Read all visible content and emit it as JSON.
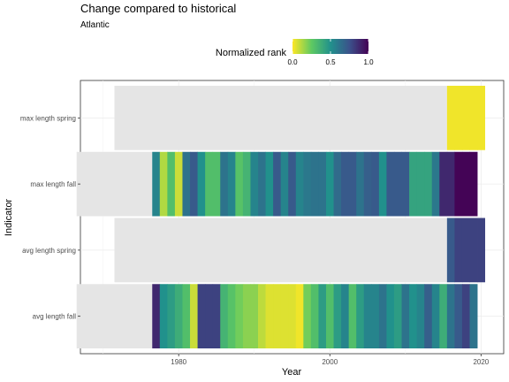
{
  "chart_data": {
    "type": "heatmap",
    "title": "Change compared to historical",
    "subtitle": "Atlantic",
    "xlabel": "Year",
    "ylabel": "Indicator",
    "xlim": [
      1967,
      2023
    ],
    "x_ticks": [
      "1980",
      "2000",
      "2020"
    ],
    "grid": true,
    "legend": {
      "title": "Normalized rank",
      "position": "top",
      "ticks": [
        "0.0",
        "0.5",
        "1.0"
      ],
      "colormap": "viridis-reversed",
      "min": 0,
      "max": 1
    },
    "missing_color": "#e5e5e5",
    "indicators": [
      {
        "name": "max length spring",
        "missing_span": [
          1972,
          2015
        ],
        "values": [
          {
            "year": 2016,
            "rank": 0.02
          },
          {
            "year": 2017,
            "rank": 0.02
          },
          {
            "year": 2018,
            "rank": 0.02
          },
          {
            "year": 2019,
            "rank": 0.02
          },
          {
            "year": 2020,
            "rank": 0.02
          }
        ]
      },
      {
        "name": "max length fall",
        "missing_span": [
          1967,
          1976
        ],
        "values": [
          {
            "year": 1977,
            "rank": 0.55
          },
          {
            "year": 1978,
            "rank": 0.12
          },
          {
            "year": 1979,
            "rank": 0.3
          },
          {
            "year": 1980,
            "rank": 0.08
          },
          {
            "year": 1981,
            "rank": 0.62
          },
          {
            "year": 1982,
            "rank": 0.72
          },
          {
            "year": 1983,
            "rank": 0.5
          },
          {
            "year": 1984,
            "rank": 0.3
          },
          {
            "year": 1985,
            "rank": 0.3
          },
          {
            "year": 1986,
            "rank": 0.62
          },
          {
            "year": 1987,
            "rank": 0.55
          },
          {
            "year": 1988,
            "rank": 0.28
          },
          {
            "year": 1989,
            "rank": 0.35
          },
          {
            "year": 1990,
            "rank": 0.55
          },
          {
            "year": 1991,
            "rank": 0.62
          },
          {
            "year": 1992,
            "rank": 0.5
          },
          {
            "year": 1993,
            "rank": 0.72
          },
          {
            "year": 1994,
            "rank": 0.55
          },
          {
            "year": 1995,
            "rank": 0.72
          },
          {
            "year": 1996,
            "rank": 0.55
          },
          {
            "year": 1997,
            "rank": 0.6
          },
          {
            "year": 1998,
            "rank": 0.62
          },
          {
            "year": 1999,
            "rank": 0.62
          },
          {
            "year": 2000,
            "rank": 0.5
          },
          {
            "year": 2001,
            "rank": 0.65
          },
          {
            "year": 2002,
            "rank": 0.72
          },
          {
            "year": 2003,
            "rank": 0.72
          },
          {
            "year": 2004,
            "rank": 0.62
          },
          {
            "year": 2005,
            "rank": 0.7
          },
          {
            "year": 2006,
            "rank": 0.72
          },
          {
            "year": 2007,
            "rank": 0.5
          },
          {
            "year": 2008,
            "rank": 0.72
          },
          {
            "year": 2009,
            "rank": 0.72
          },
          {
            "year": 2010,
            "rank": 0.72
          },
          {
            "year": 2011,
            "rank": 0.42
          },
          {
            "year": 2012,
            "rank": 0.42
          },
          {
            "year": 2013,
            "rank": 0.42
          },
          {
            "year": 2014,
            "rank": 0.6
          },
          {
            "year": 2015,
            "rank": 0.88
          },
          {
            "year": 2016,
            "rank": 0.88
          },
          {
            "year": 2017,
            "rank": 0.99
          },
          {
            "year": 2018,
            "rank": 0.99
          },
          {
            "year": 2019,
            "rank": 0.99
          }
        ]
      },
      {
        "name": "avg length spring",
        "missing_span": [
          1972,
          2015
        ],
        "values": [
          {
            "year": 2016,
            "rank": 0.72
          },
          {
            "year": 2017,
            "rank": 0.8
          },
          {
            "year": 2018,
            "rank": 0.8
          },
          {
            "year": 2019,
            "rank": 0.8
          },
          {
            "year": 2020,
            "rank": 0.8
          }
        ]
      },
      {
        "name": "avg length fall",
        "missing_span": [
          1967,
          1976
        ],
        "values": [
          {
            "year": 1977,
            "rank": 0.88
          },
          {
            "year": 1978,
            "rank": 0.5
          },
          {
            "year": 1979,
            "rank": 0.45
          },
          {
            "year": 1980,
            "rank": 0.38
          },
          {
            "year": 1981,
            "rank": 0.3
          },
          {
            "year": 1982,
            "rank": 0.08
          },
          {
            "year": 1983,
            "rank": 0.8
          },
          {
            "year": 1984,
            "rank": 0.8
          },
          {
            "year": 1985,
            "rank": 0.8
          },
          {
            "year": 1986,
            "rank": 0.35
          },
          {
            "year": 1987,
            "rank": 0.28
          },
          {
            "year": 1988,
            "rank": 0.22
          },
          {
            "year": 1989,
            "rank": 0.18
          },
          {
            "year": 1990,
            "rank": 0.18
          },
          {
            "year": 1991,
            "rank": 0.1
          },
          {
            "year": 1992,
            "rank": 0.05
          },
          {
            "year": 1993,
            "rank": 0.05
          },
          {
            "year": 1994,
            "rank": 0.05
          },
          {
            "year": 1995,
            "rank": 0.05
          },
          {
            "year": 1996,
            "rank": 0.02
          },
          {
            "year": 1997,
            "rank": 0.22
          },
          {
            "year": 1998,
            "rank": 0.3
          },
          {
            "year": 1999,
            "rank": 0.45
          },
          {
            "year": 2000,
            "rank": 0.3
          },
          {
            "year": 2001,
            "rank": 0.45
          },
          {
            "year": 2002,
            "rank": 0.55
          },
          {
            "year": 2003,
            "rank": 0.3
          },
          {
            "year": 2004,
            "rank": 0.45
          },
          {
            "year": 2005,
            "rank": 0.55
          },
          {
            "year": 2006,
            "rank": 0.55
          },
          {
            "year": 2007,
            "rank": 0.62
          },
          {
            "year": 2008,
            "rank": 0.5
          },
          {
            "year": 2009,
            "rank": 0.45
          },
          {
            "year": 2010,
            "rank": 0.62
          },
          {
            "year": 2011,
            "rank": 0.5
          },
          {
            "year": 2012,
            "rank": 0.55
          },
          {
            "year": 2013,
            "rank": 0.7
          },
          {
            "year": 2014,
            "rank": 0.55
          },
          {
            "year": 2015,
            "rank": 0.38
          },
          {
            "year": 2016,
            "rank": 0.62
          },
          {
            "year": 2017,
            "rank": 0.72
          },
          {
            "year": 2018,
            "rank": 0.8
          },
          {
            "year": 2019,
            "rank": 0.62
          }
        ]
      }
    ]
  }
}
